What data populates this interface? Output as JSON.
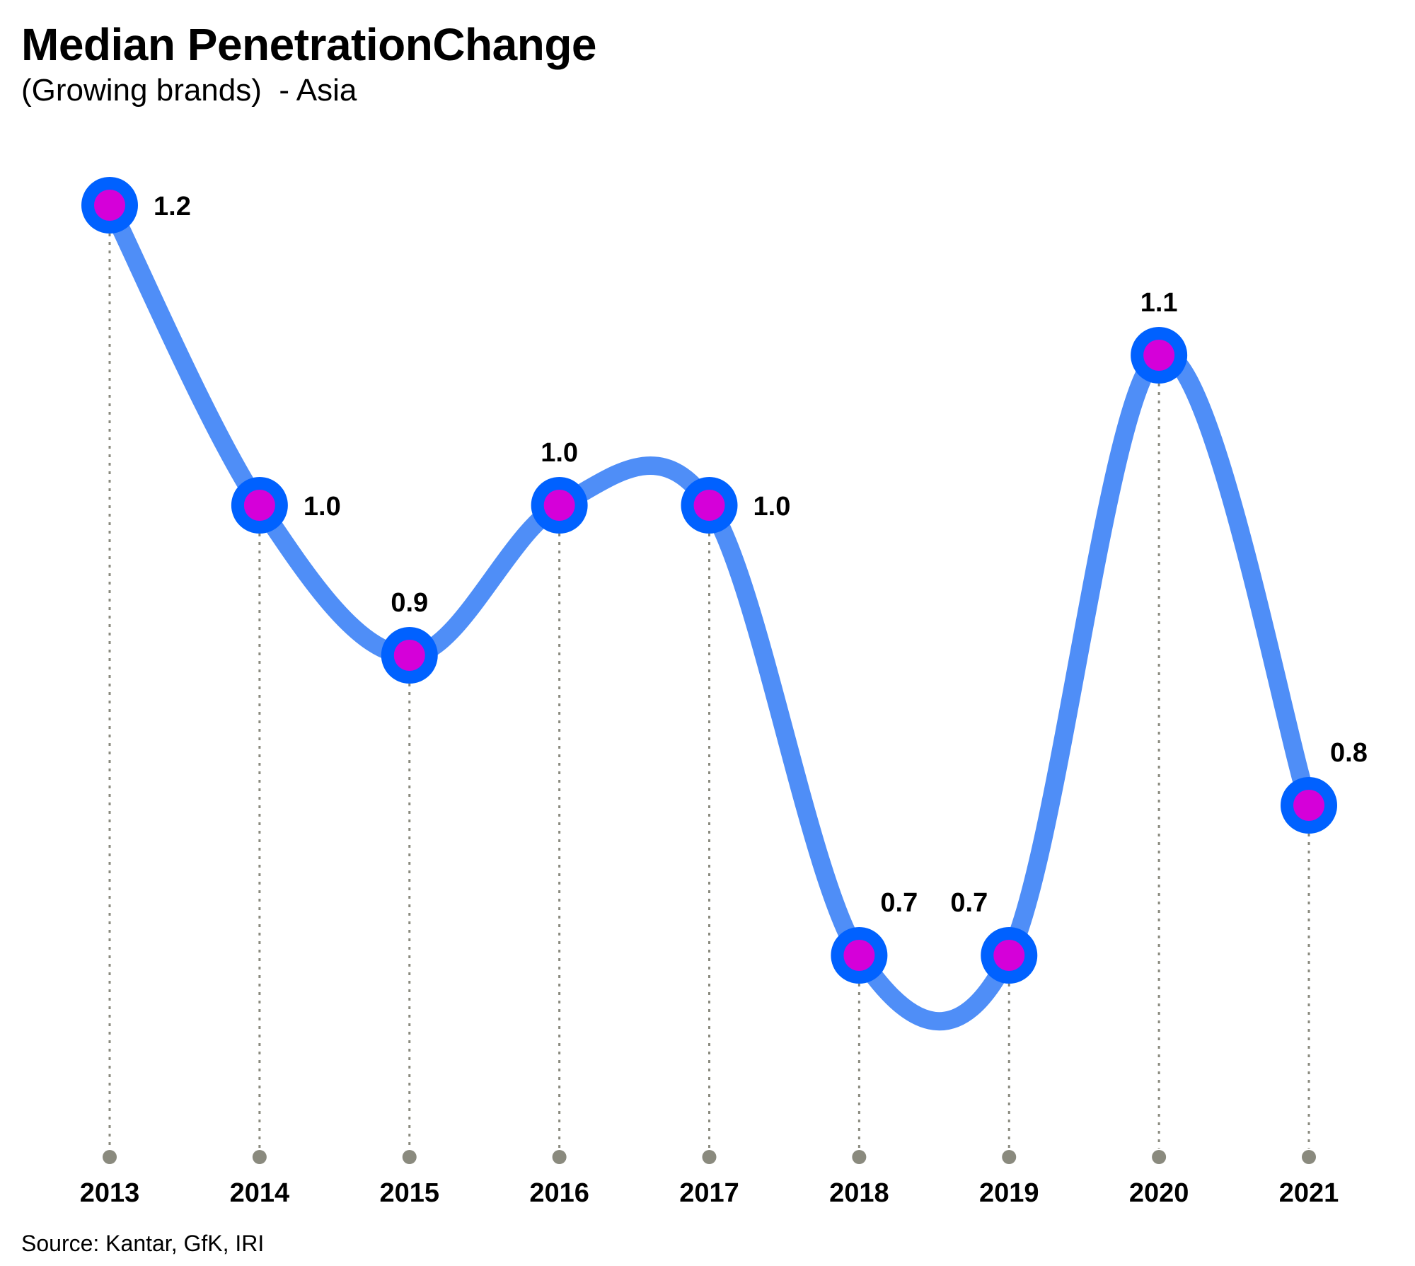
{
  "chart_data": {
    "type": "line",
    "title": "Median PenetrationChange",
    "subtitle": "(Growing brands)  - Asia",
    "source": "Source: Kantar, GfK, IRI",
    "x": [
      "2013",
      "2014",
      "2015",
      "2016",
      "2017",
      "2018",
      "2019",
      "2020",
      "2021"
    ],
    "series": [
      {
        "values": [
          1.2,
          1.0,
          0.9,
          1.0,
          1.0,
          0.7,
          0.7,
          1.1,
          0.8
        ],
        "labels": [
          "1.2",
          "1.0",
          "0.9",
          "1.0",
          "1.0",
          "0.7",
          "0.7",
          "1.1",
          "0.8"
        ]
      }
    ],
    "ylim": [
      0.7,
      1.2
    ],
    "grid": false,
    "legend": "none",
    "colors": {
      "line": "#4f8ef7",
      "marker_ring": "#0061ff",
      "marker_fill": "#d500d9",
      "dropline": "#8a8a7e"
    }
  }
}
